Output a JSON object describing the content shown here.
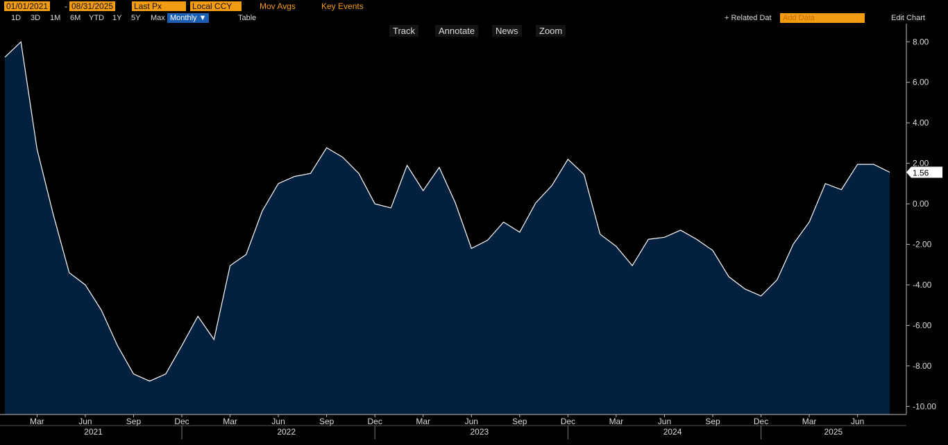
{
  "toolbar": {
    "start_date": "01/01/2021",
    "date_sep": "-",
    "end_date": "08/31/2025",
    "field": "Last Px",
    "currency": "Local CCY",
    "mov_avgs": "Mov Avgs",
    "key_events": "Key Events",
    "ranges": [
      "1D",
      "3D",
      "1M",
      "6M",
      "YTD",
      "1Y",
      "5Y",
      "Max"
    ],
    "period": "Monthly ▼",
    "table": "Table",
    "related": "+ Related Dat",
    "add_data": "Add Data",
    "edit_chart": "Edit Chart",
    "chart_tools": [
      "Track",
      "Annotate",
      "News",
      "Zoom"
    ]
  },
  "chart_data": {
    "type": "area",
    "color": "#04203f",
    "line_color": "#ffffff",
    "x": [
      "2021-01",
      "2021-02",
      "2021-03",
      "2021-04",
      "2021-05",
      "2021-06",
      "2021-07",
      "2021-08",
      "2021-09",
      "2021-10",
      "2021-11",
      "2021-12",
      "2022-01",
      "2022-02",
      "2022-03",
      "2022-04",
      "2022-05",
      "2022-06",
      "2022-07",
      "2022-08",
      "2022-09",
      "2022-10",
      "2022-11",
      "2022-12",
      "2023-01",
      "2023-02",
      "2023-03",
      "2023-04",
      "2023-05",
      "2023-06",
      "2023-07",
      "2023-08",
      "2023-09",
      "2023-10",
      "2023-11",
      "2023-12",
      "2024-01",
      "2024-02",
      "2024-03",
      "2024-04",
      "2024-05",
      "2024-06",
      "2024-07",
      "2024-08",
      "2024-09",
      "2024-10",
      "2024-11",
      "2024-12",
      "2025-01",
      "2025-02",
      "2025-03",
      "2025-04",
      "2025-05",
      "2025-06",
      "2025-07",
      "2025-08"
    ],
    "values": [
      7.24,
      8.0,
      2.7,
      -0.5,
      -3.4,
      -4.0,
      -5.25,
      -7.0,
      -8.4,
      -8.75,
      -8.4,
      -7.0,
      -5.55,
      -6.7,
      -3.05,
      -2.5,
      -0.35,
      1.0,
      1.35,
      1.5,
      2.77,
      2.3,
      1.5,
      0.0,
      -0.2,
      1.9,
      0.65,
      1.8,
      0.05,
      -2.2,
      -1.8,
      -0.9,
      -1.4,
      0.05,
      0.9,
      2.2,
      1.45,
      -1.5,
      -2.1,
      -3.05,
      -1.75,
      -1.65,
      -1.3,
      -1.75,
      -2.3,
      -3.6,
      -4.2,
      -4.55,
      -3.75,
      -2.0,
      -0.9,
      1.0,
      0.7,
      1.95,
      1.95,
      1.56
    ],
    "xlim": [
      "2021-01",
      "2025-08"
    ],
    "xticks": [
      {
        "value": "2021-03",
        "label": "Mar"
      },
      {
        "value": "2021-06",
        "label": "Jun"
      },
      {
        "value": "2021-09",
        "label": "Sep"
      },
      {
        "value": "2021-12",
        "label": "Dec"
      },
      {
        "value": "2022-03",
        "label": "Mar"
      },
      {
        "value": "2022-06",
        "label": "Jun"
      },
      {
        "value": "2022-09",
        "label": "Sep"
      },
      {
        "value": "2022-12",
        "label": "Dec"
      },
      {
        "value": "2023-03",
        "label": "Mar"
      },
      {
        "value": "2023-06",
        "label": "Jun"
      },
      {
        "value": "2023-09",
        "label": "Sep"
      },
      {
        "value": "2023-12",
        "label": "Dec"
      },
      {
        "value": "2024-03",
        "label": "Mar"
      },
      {
        "value": "2024-06",
        "label": "Jun"
      },
      {
        "value": "2024-09",
        "label": "Sep"
      },
      {
        "value": "2024-12",
        "label": "Dec"
      },
      {
        "value": "2025-03",
        "label": "Mar"
      },
      {
        "value": "2025-06",
        "label": "Jun"
      }
    ],
    "years": [
      "2021",
      "2022",
      "2023",
      "2024",
      "2025"
    ],
    "ylim": [
      -10.4,
      8.9
    ],
    "yticks": [
      {
        "value": 8,
        "label": "8.00"
      },
      {
        "value": 6,
        "label": "6.00"
      },
      {
        "value": 4,
        "label": "4.00"
      },
      {
        "value": 2,
        "label": "2.00"
      },
      {
        "value": 0,
        "label": "0.00"
      },
      {
        "value": -2,
        "label": "-2.00"
      },
      {
        "value": -4,
        "label": "-4.00"
      },
      {
        "value": -6,
        "label": "-6.00"
      },
      {
        "value": -8,
        "label": "-8.00"
      },
      {
        "value": -10,
        "label": "-10.00"
      }
    ],
    "grid": false
  }
}
